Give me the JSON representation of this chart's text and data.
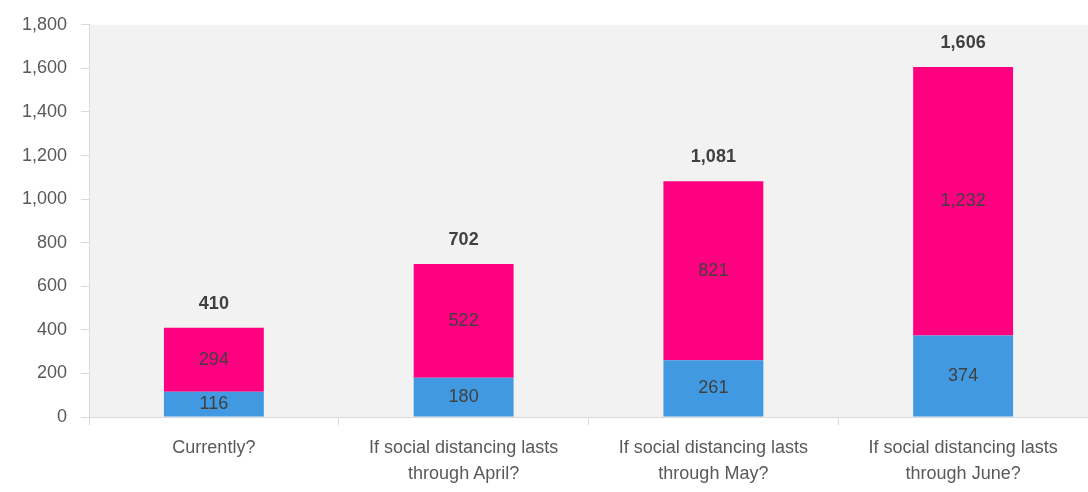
{
  "chart_data": {
    "type": "bar",
    "stacked": true,
    "categories": [
      "Currently?",
      "If social distancing lasts through April?",
      "If social distancing lasts through May?",
      "If social distancing lasts through June?"
    ],
    "series": [
      {
        "color": "#419ae1",
        "values": [
          116,
          180,
          261,
          374
        ],
        "value_labels": [
          "116",
          "180",
          "261",
          "374"
        ]
      },
      {
        "color": "#ff0080",
        "values": [
          294,
          522,
          821,
          1232
        ],
        "value_labels": [
          "294",
          "522",
          "821",
          "1,232"
        ]
      }
    ],
    "totals": [
      "410",
      "702",
      "1,081",
      "1,606"
    ],
    "ylim": [
      0,
      1800
    ],
    "yticks": [
      0,
      200,
      400,
      600,
      800,
      {
        "value": 1000,
        "label": "1,000"
      },
      {
        "value": 1200,
        "label": "1,200"
      },
      {
        "value": 1400,
        "label": "1,400"
      },
      {
        "value": 1600,
        "label": "1,600"
      },
      {
        "value": 1800,
        "label": "1,800"
      }
    ],
    "grid": false,
    "legend": false
  }
}
